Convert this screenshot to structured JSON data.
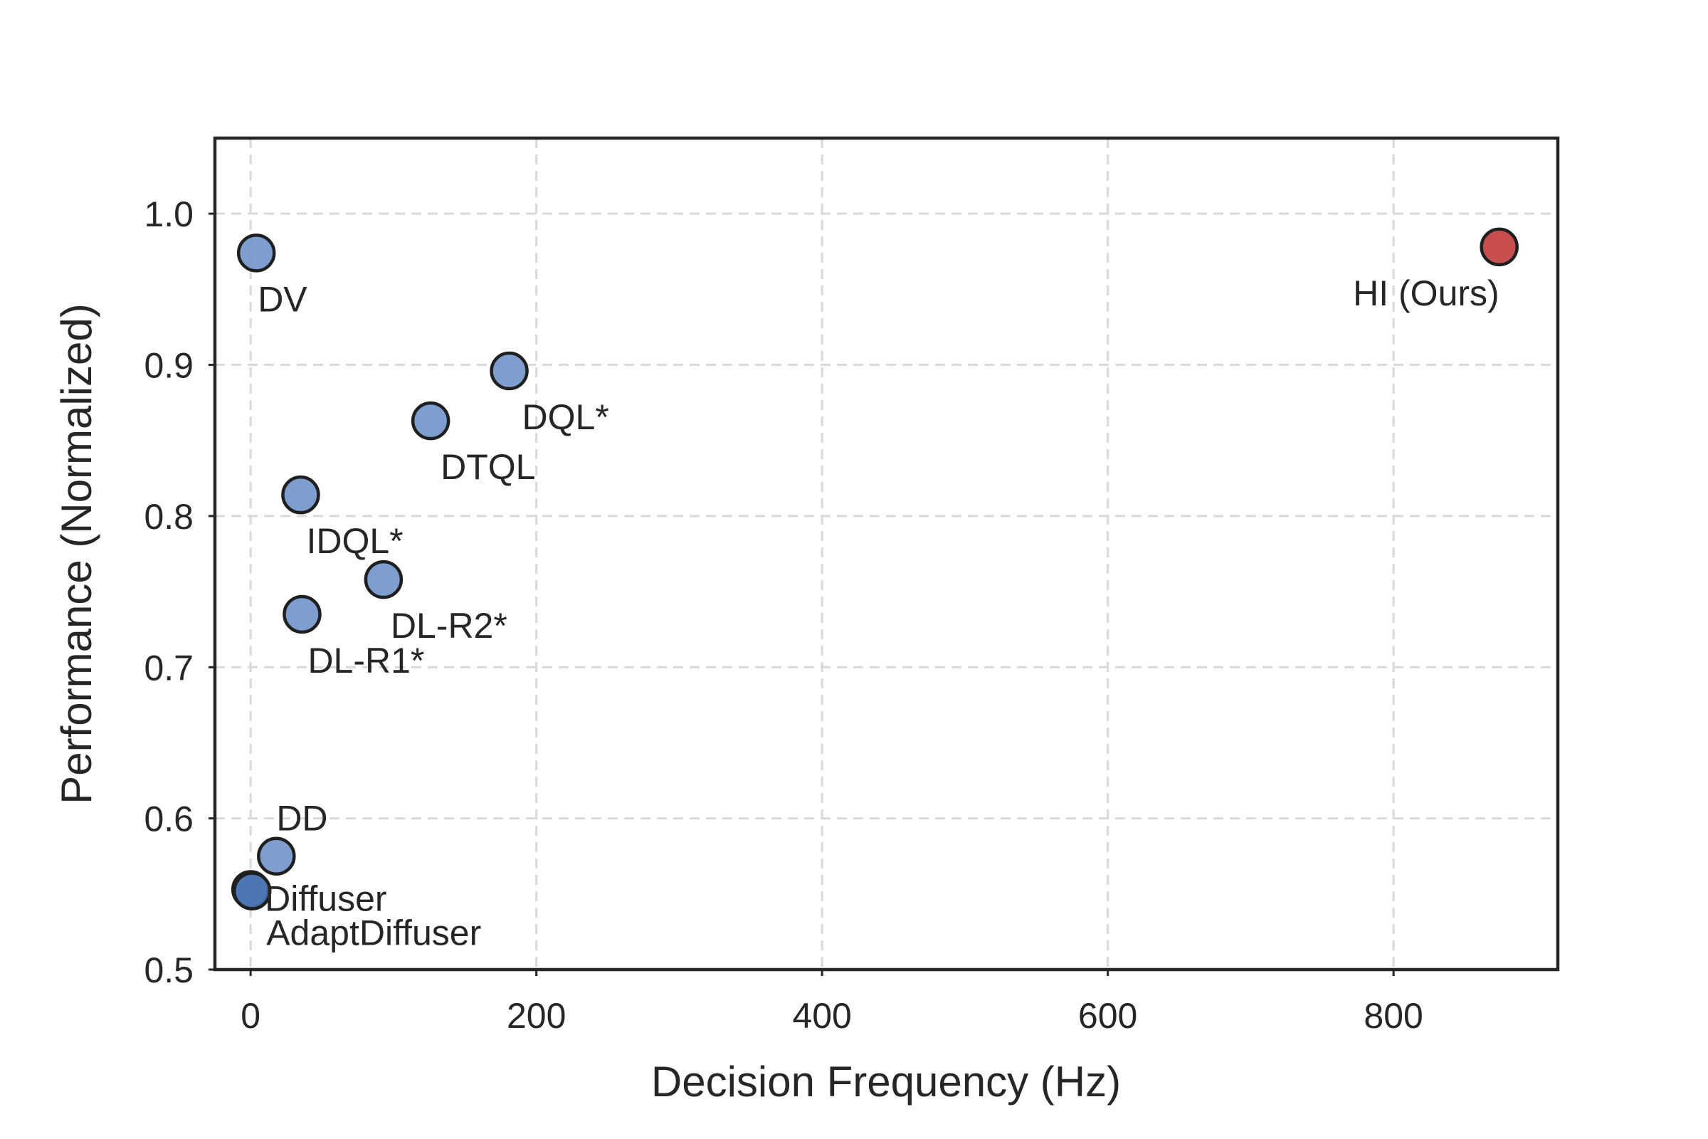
{
  "chart_data": {
    "type": "scatter",
    "xlabel": "Decision Frequency (Hz)",
    "ylabel": "Performance (Normalized)",
    "xlim": [
      -25,
      915
    ],
    "ylim": [
      0.5,
      1.05
    ],
    "xticks": [
      0,
      200,
      400,
      600,
      800
    ],
    "xtick_labels": [
      "0",
      "200",
      "400",
      "600",
      "800"
    ],
    "yticks": [
      0.5,
      0.6,
      0.7,
      0.8,
      0.9,
      1.0
    ],
    "ytick_labels": [
      "0.5",
      "0.6",
      "0.7",
      "0.8",
      "0.9",
      "1.0"
    ],
    "grid": true,
    "colors": {
      "baseline": "#6f93c9",
      "ours": "#c23b3b",
      "baseline_dark": "#4a74b4",
      "edge": "#1f1f1f"
    },
    "points": [
      {
        "label": "DV",
        "x": 4,
        "y": 0.974,
        "style": "baseline",
        "label_pos": "below-right"
      },
      {
        "label": "DQL*",
        "x": 181,
        "y": 0.896,
        "style": "baseline",
        "label_pos": "below-right"
      },
      {
        "label": "DTQL",
        "x": 126,
        "y": 0.863,
        "style": "baseline",
        "label_pos": "below-right"
      },
      {
        "label": "IDQL*",
        "x": 35,
        "y": 0.814,
        "style": "baseline",
        "label_pos": "below-right"
      },
      {
        "label": "DL-R2*",
        "x": 93,
        "y": 0.758,
        "style": "baseline",
        "label_pos": "below-right"
      },
      {
        "label": "DL-R1*",
        "x": 36,
        "y": 0.735,
        "style": "baseline",
        "label_pos": "below-right"
      },
      {
        "label": "DD",
        "x": 18,
        "y": 0.575,
        "style": "baseline",
        "label_pos": "above-right"
      },
      {
        "label": "Diffuser",
        "x": 0,
        "y": 0.553,
        "style": "baseline_dark",
        "label_pos": "below-right"
      },
      {
        "label": "AdaptDiffuser",
        "x": 1,
        "y": 0.552,
        "style": "baseline_dark",
        "label_pos": "below-right-far"
      },
      {
        "label": "HI (Ours)",
        "x": 874,
        "y": 0.978,
        "style": "ours",
        "label_pos": "below-left"
      }
    ]
  }
}
